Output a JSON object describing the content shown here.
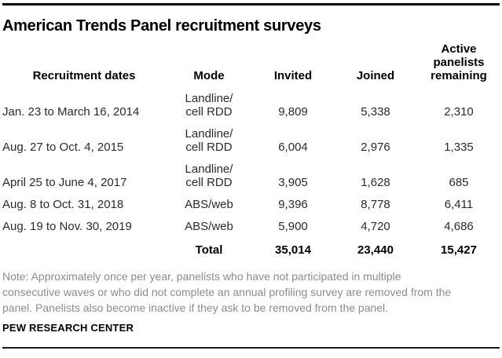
{
  "title": "American Trends Panel recruitment surveys",
  "table": {
    "headers": {
      "dates": "Recruitment dates",
      "mode": "Mode",
      "invited": "Invited",
      "joined": "Joined",
      "active": "Active\npanelists\nremaining"
    },
    "rows": [
      {
        "date": "Jan. 23 to March 16, 2014",
        "mode": "Landline/\ncell RDD",
        "invited": "9,809",
        "joined": "5,338",
        "active": "2,310"
      },
      {
        "date": "Aug. 27 to Oct. 4, 2015",
        "mode": "Landline/\ncell RDD",
        "invited": "6,004",
        "joined": "2,976",
        "active": "1,335"
      },
      {
        "date": "April 25 to June 4, 2017",
        "mode": "Landline/\ncell RDD",
        "invited": "3,905",
        "joined": "1,628",
        "active": "685"
      },
      {
        "date": "Aug. 8 to Oct. 31, 2018",
        "mode": "ABS/web",
        "invited": "9,396",
        "joined": "8,778",
        "active": "6,411"
      },
      {
        "date": "Aug. 19 to Nov. 30, 2019",
        "mode": "ABS/web",
        "invited": "5,900",
        "joined": "4,720",
        "active": "4,686"
      }
    ],
    "total": {
      "label": "Total",
      "invited": "35,014",
      "joined": "23,440",
      "active": "15,427"
    }
  },
  "note": "Note: Approximately once per year, panelists who have not participated in multiple\nconsecutive waves or who did not complete an annual profiling survey are removed from the\npanel. Panelists also become inactive if they ask to be removed from the panel.",
  "source": "PEW RESEARCH CENTER",
  "colors": {
    "text": "#2b2b2b",
    "heading": "#000000",
    "note": "#8c8c8c",
    "rule": "#000000"
  },
  "chart_data": {
    "type": "table",
    "title": "American Trends Panel recruitment surveys",
    "columns": [
      "Recruitment dates",
      "Mode",
      "Invited",
      "Joined",
      "Active panelists remaining"
    ],
    "rows": [
      [
        "Jan. 23 to March 16, 2014",
        "Landline/cell RDD",
        9809,
        5338,
        2310
      ],
      [
        "Aug. 27 to Oct. 4, 2015",
        "Landline/cell RDD",
        6004,
        2976,
        1335
      ],
      [
        "April 25 to June 4, 2017",
        "Landline/cell RDD",
        3905,
        1628,
        685
      ],
      [
        "Aug. 8 to Oct. 31, 2018",
        "ABS/web",
        9396,
        8778,
        6411
      ],
      [
        "Aug. 19 to Nov. 30, 2019",
        "ABS/web",
        5900,
        4720,
        4686
      ]
    ],
    "total_row": [
      "",
      "Total",
      35014,
      23440,
      15427
    ],
    "note": "Note: Approximately once per year, panelists who have not participated in multiple consecutive waves or who did not complete an annual profiling survey are removed from the panel. Panelists also become inactive if they ask to be removed from the panel.",
    "source": "PEW RESEARCH CENTER"
  }
}
